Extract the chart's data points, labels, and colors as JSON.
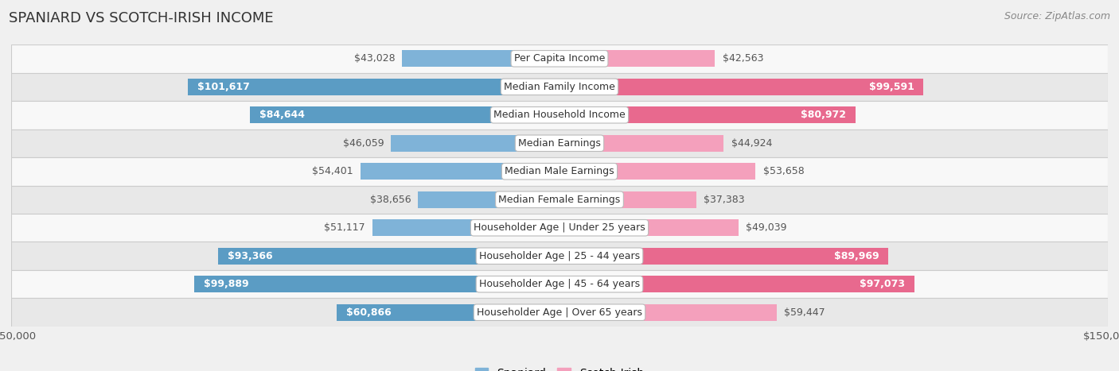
{
  "title": "SPANIARD VS SCOTCH-IRISH INCOME",
  "source": "Source: ZipAtlas.com",
  "categories": [
    "Per Capita Income",
    "Median Family Income",
    "Median Household Income",
    "Median Earnings",
    "Median Male Earnings",
    "Median Female Earnings",
    "Householder Age | Under 25 years",
    "Householder Age | 25 - 44 years",
    "Householder Age | 45 - 64 years",
    "Householder Age | Over 65 years"
  ],
  "spaniard_values": [
    43028,
    101617,
    84644,
    46059,
    54401,
    38656,
    51117,
    93366,
    99889,
    60866
  ],
  "scotch_irish_values": [
    42563,
    99591,
    80972,
    44924,
    53658,
    37383,
    49039,
    89969,
    97073,
    59447
  ],
  "spaniard_labels": [
    "$43,028",
    "$101,617",
    "$84,644",
    "$46,059",
    "$54,401",
    "$38,656",
    "$51,117",
    "$93,366",
    "$99,889",
    "$60,866"
  ],
  "scotch_irish_labels": [
    "$42,563",
    "$99,591",
    "$80,972",
    "$44,924",
    "$53,658",
    "$37,383",
    "$49,039",
    "$89,969",
    "$97,073",
    "$59,447"
  ],
  "spaniard_color": "#7fb3d8",
  "scotch_irish_color": "#f4a0bc",
  "spaniard_color_strong": "#5b9cc4",
  "scotch_irish_color_strong": "#e8698e",
  "max_value": 150000,
  "bg_color": "#f0f0f0",
  "row_colors": [
    "#f8f8f8",
    "#e8e8e8"
  ],
  "bar_height": 0.6,
  "label_fontsize": 9,
  "category_fontsize": 9,
  "title_fontsize": 13,
  "inside_threshold": 60000
}
